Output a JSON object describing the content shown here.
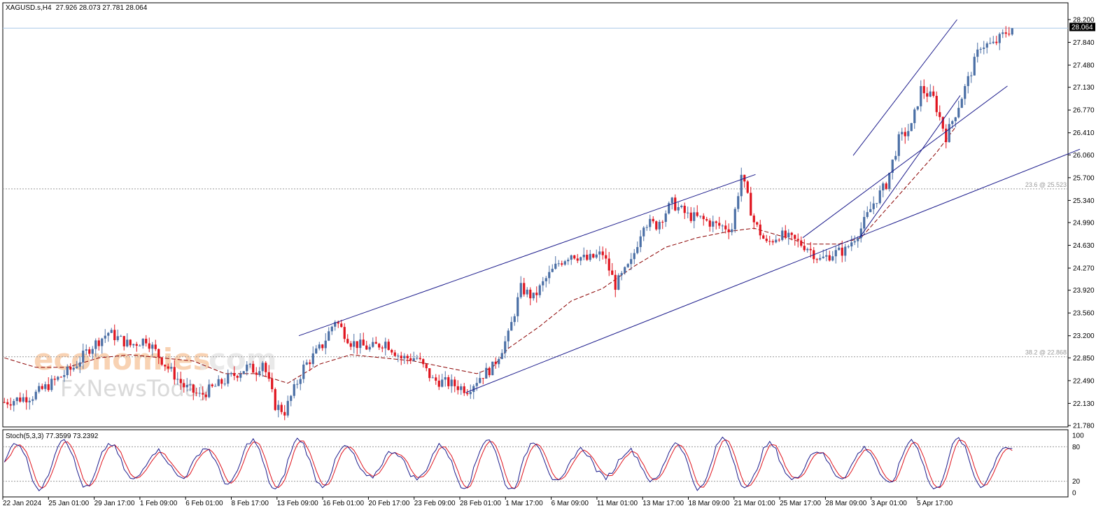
{
  "header": {
    "symbol": "XAGUSD.s,H4",
    "ohlc": "27.926 28.073 27.781 28.064"
  },
  "watermark": {
    "brand": "economies",
    "brand_suffix": ".com",
    "sub": "FxNewsToday"
  },
  "price_axis": {
    "ticks": [
      "28.200",
      "27.840",
      "27.480",
      "27.130",
      "26.770",
      "26.410",
      "26.060",
      "25.700",
      "25.340",
      "24.990",
      "24.630",
      "24.270",
      "23.920",
      "23.560",
      "23.200",
      "22.850",
      "22.490",
      "22.130",
      "21.780"
    ],
    "current_price": "28.064"
  },
  "fib_levels": [
    {
      "label": "23.6 @ 25.523",
      "price": 25.523
    },
    {
      "label": "38.2 @ 22.868",
      "price": 22.868
    }
  ],
  "time_axis": {
    "labels": [
      "22 Jan 2024",
      "25 Jan 01:00",
      "29 Jan 17:00",
      "1 Feb 09:00",
      "6 Feb 01:00",
      "8 Feb 17:00",
      "13 Feb 09:00",
      "16 Feb 01:00",
      "20 Feb 17:00",
      "23 Feb 09:00",
      "28 Feb 01:00",
      "1 Mar 17:00",
      "6 Mar 09:00",
      "11 Mar 01:00",
      "13 Mar 17:00",
      "18 Mar 09:00",
      "21 Mar 01:00",
      "25 Mar 17:00",
      "28 Mar 09:00",
      "3 Apr 01:00",
      "5 Apr 17:00"
    ]
  },
  "stoch": {
    "label": "Stoch(5,3,3) 77.3599 73.2392",
    "ticks": [
      "100",
      "80",
      "20",
      "0"
    ]
  },
  "colors": {
    "bull": "#4a6fa5",
    "bear": "#e0141e",
    "ma": "#8b0000",
    "channel": "#1c1c8c",
    "stoch_main": "#1c1c8c",
    "stoch_signal": "#e0141e"
  },
  "chart_data": {
    "type": "candlestick",
    "instrument": "XAGUSD.s",
    "timeframe": "H4",
    "ylim": [
      21.78,
      28.2
    ],
    "price_path": [
      [
        0,
        22.15
      ],
      [
        9,
        22.25
      ],
      [
        15,
        22.45
      ],
      [
        22,
        22.7
      ],
      [
        27,
        23.0
      ],
      [
        33,
        23.25
      ],
      [
        40,
        23.05
      ],
      [
        45,
        23.15
      ],
      [
        51,
        22.75
      ],
      [
        57,
        22.4
      ],
      [
        62,
        22.25
      ],
      [
        67,
        22.4
      ],
      [
        72,
        22.55
      ],
      [
        77,
        22.7
      ],
      [
        80,
        22.65
      ],
      [
        82,
        22.8
      ],
      [
        86,
        22.1
      ],
      [
        89,
        22.0
      ],
      [
        95,
        22.7
      ],
      [
        101,
        23.05
      ],
      [
        105,
        23.45
      ],
      [
        110,
        23.1
      ],
      [
        116,
        23.0
      ],
      [
        121,
        23.1
      ],
      [
        126,
        22.85
      ],
      [
        131,
        22.85
      ],
      [
        136,
        22.5
      ],
      [
        141,
        22.45
      ],
      [
        147,
        22.35
      ],
      [
        151,
        22.55
      ],
      [
        155,
        22.7
      ],
      [
        160,
        23.2
      ],
      [
        164,
        23.95
      ],
      [
        168,
        23.8
      ],
      [
        172,
        24.1
      ],
      [
        176,
        24.35
      ],
      [
        180,
        24.5
      ],
      [
        185,
        24.4
      ],
      [
        190,
        24.5
      ],
      [
        194,
        24.0
      ],
      [
        199,
        24.35
      ],
      [
        203,
        25.0
      ],
      [
        207,
        24.95
      ],
      [
        212,
        25.3
      ],
      [
        217,
        25.1
      ],
      [
        221,
        25.05
      ],
      [
        226,
        24.95
      ],
      [
        231,
        24.9
      ],
      [
        234,
        25.75
      ],
      [
        238,
        25.0
      ],
      [
        242,
        24.65
      ],
      [
        246,
        24.8
      ],
      [
        251,
        24.7
      ],
      [
        255,
        24.6
      ],
      [
        259,
        24.4
      ],
      [
        263,
        24.5
      ],
      [
        267,
        24.55
      ],
      [
        272,
        24.9
      ],
      [
        276,
        25.3
      ],
      [
        280,
        25.6
      ],
      [
        284,
        26.3
      ],
      [
        288,
        26.5
      ],
      [
        291,
        27.1
      ],
      [
        295,
        26.95
      ],
      [
        299,
        26.35
      ],
      [
        303,
        26.85
      ],
      [
        306,
        27.25
      ],
      [
        310,
        27.8
      ],
      [
        314,
        27.8
      ],
      [
        318,
        28.0
      ],
      [
        320,
        28.06
      ]
    ],
    "ma_path": [
      [
        0,
        22.85
      ],
      [
        10,
        22.7
      ],
      [
        20,
        22.7
      ],
      [
        30,
        22.85
      ],
      [
        40,
        22.9
      ],
      [
        50,
        22.85
      ],
      [
        60,
        22.8
      ],
      [
        70,
        22.6
      ],
      [
        80,
        22.6
      ],
      [
        90,
        22.45
      ],
      [
        100,
        22.75
      ],
      [
        110,
        22.9
      ],
      [
        120,
        22.85
      ],
      [
        130,
        22.8
      ],
      [
        140,
        22.7
      ],
      [
        150,
        22.6
      ],
      [
        155,
        22.7
      ],
      [
        160,
        23.0
      ],
      [
        170,
        23.35
      ],
      [
        180,
        23.75
      ],
      [
        190,
        23.95
      ],
      [
        200,
        24.3
      ],
      [
        210,
        24.6
      ],
      [
        220,
        24.75
      ],
      [
        230,
        24.85
      ],
      [
        238,
        24.9
      ],
      [
        245,
        24.8
      ],
      [
        255,
        24.65
      ],
      [
        265,
        24.65
      ],
      [
        272,
        24.75
      ],
      [
        280,
        25.2
      ],
      [
        288,
        25.65
      ],
      [
        296,
        26.1
      ],
      [
        302,
        26.5
      ]
    ],
    "channels": [
      {
        "name": "outer-upper",
        "points": [
          [
            94,
            23.2
          ],
          [
            239,
            25.75
          ]
        ]
      },
      {
        "name": "outer-lower",
        "points": [
          [
            147,
            22.3
          ],
          [
            342,
            26.15
          ]
        ]
      },
      {
        "name": "middle",
        "points": [
          [
            254,
            24.75
          ],
          [
            319,
            27.15
          ]
        ]
      },
      {
        "name": "steep-lower",
        "points": [
          [
            272,
            24.75
          ],
          [
            304,
            27.0
          ]
        ]
      },
      {
        "name": "steep-upper",
        "points": [
          [
            270,
            26.05
          ],
          [
            303,
            28.2
          ]
        ]
      }
    ],
    "stochastic": {
      "k": 77.3599,
      "d": 73.2392,
      "ylim": [
        0,
        100
      ],
      "levels": [
        80,
        20
      ]
    }
  }
}
